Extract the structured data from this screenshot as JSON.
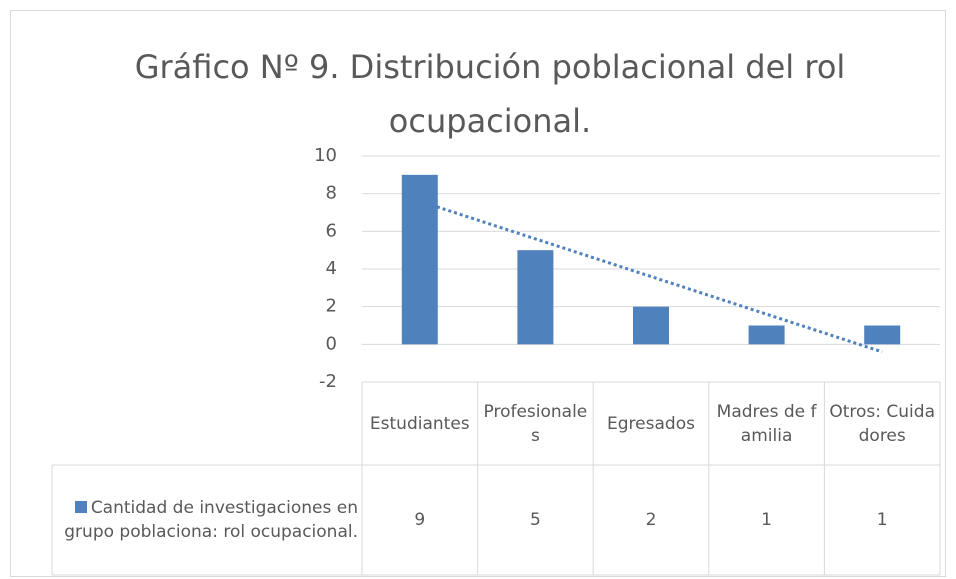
{
  "chart_data": {
    "type": "bar",
    "title": "Gráfico Nº 9. Distribución poblacional del rol ocupacional.",
    "categories": [
      "Estudiantes",
      "Profesionales",
      "Egresados",
      "Madres de familia",
      "Otros: Cuidadores"
    ],
    "series": [
      {
        "name": "Cantidad de investigaciones en grupo poblaciona: rol ocupacional.",
        "color": "#4f81bd",
        "values": [
          9,
          5,
          2,
          1,
          1
        ]
      }
    ],
    "ylim": [
      -2,
      10
    ],
    "yticks": [
      -2,
      0,
      2,
      4,
      6,
      8,
      10
    ],
    "grid": true,
    "trendline": "linear",
    "data_table": true
  }
}
